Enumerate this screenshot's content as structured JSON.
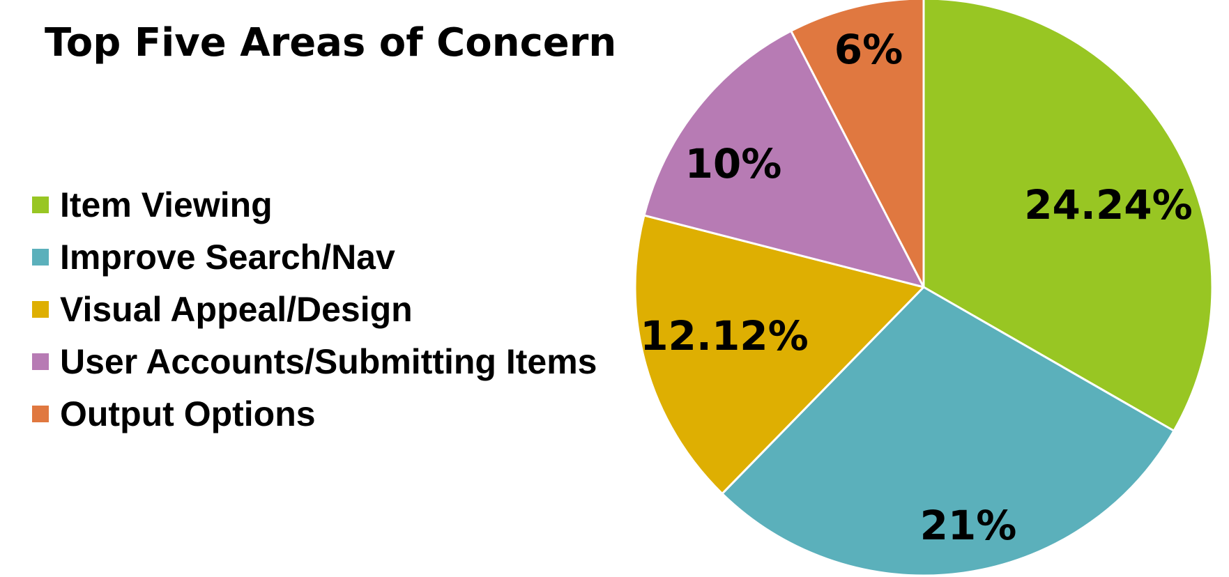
{
  "chart_data": {
    "type": "pie",
    "title": "Top Five Areas of Concern",
    "legend_position": "left",
    "slices": [
      {
        "name": "Item Viewing",
        "value": 33.3,
        "label": "24.24%",
        "color": "#98c623"
      },
      {
        "name": "Improve Search/Nav",
        "value": 29.0,
        "label": "21%",
        "color": "#5bb0bb"
      },
      {
        "name": "Visual Appeal/Design",
        "value": 16.7,
        "label": "12.12%",
        "color": "#deaf02"
      },
      {
        "name": "User Accounts/Submitting Items",
        "value": 13.4,
        "label": "10%",
        "color": "#b77bb4"
      },
      {
        "name": "Output Options",
        "value": 7.6,
        "label": "6%",
        "color": "#e07840"
      }
    ]
  }
}
